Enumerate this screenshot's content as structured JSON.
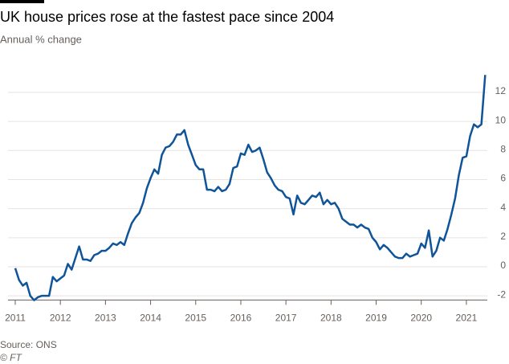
{
  "chart_data": {
    "type": "line",
    "title": "UK house prices rose at the fastest pace since 2004",
    "subtitle": "Annual % change",
    "source": "Source: ONS",
    "credit": "© FT",
    "xlim": [
      2011,
      2021.5
    ],
    "xticks": [
      2011,
      2012,
      2013,
      2014,
      2015,
      2016,
      2017,
      2018,
      2019,
      2020,
      2021
    ],
    "ylim": [
      -2.4,
      13.8
    ],
    "yticks": [
      -2,
      0,
      2,
      4,
      6,
      8,
      10,
      12
    ],
    "grid": true,
    "x": [
      2011.0,
      2011.083,
      2011.167,
      2011.25,
      2011.333,
      2011.417,
      2011.5,
      2011.583,
      2011.667,
      2011.75,
      2011.833,
      2011.917,
      2012.0,
      2012.083,
      2012.167,
      2012.25,
      2012.333,
      2012.417,
      2012.5,
      2012.583,
      2012.667,
      2012.75,
      2012.833,
      2012.917,
      2013.0,
      2013.083,
      2013.167,
      2013.25,
      2013.333,
      2013.417,
      2013.5,
      2013.583,
      2013.667,
      2013.75,
      2013.833,
      2013.917,
      2014.0,
      2014.083,
      2014.167,
      2014.25,
      2014.333,
      2014.417,
      2014.5,
      2014.583,
      2014.667,
      2014.75,
      2014.833,
      2014.917,
      2015.0,
      2015.083,
      2015.167,
      2015.25,
      2015.333,
      2015.417,
      2015.5,
      2015.583,
      2015.667,
      2015.75,
      2015.833,
      2015.917,
      2016.0,
      2016.083,
      2016.167,
      2016.25,
      2016.333,
      2016.417,
      2016.5,
      2016.583,
      2016.667,
      2016.75,
      2016.833,
      2016.917,
      2017.0,
      2017.083,
      2017.167,
      2017.25,
      2017.333,
      2017.417,
      2017.5,
      2017.583,
      2017.667,
      2017.75,
      2017.833,
      2017.917,
      2018.0,
      2018.083,
      2018.167,
      2018.25,
      2018.333,
      2018.417,
      2018.5,
      2018.583,
      2018.667,
      2018.75,
      2018.833,
      2018.917,
      2019.0,
      2019.083,
      2019.167,
      2019.25,
      2019.333,
      2019.417,
      2019.5,
      2019.583,
      2019.667,
      2019.75,
      2019.833,
      2019.917,
      2020.0,
      2020.083,
      2020.167,
      2020.25,
      2020.333,
      2020.417,
      2020.5,
      2020.583,
      2020.667,
      2020.75,
      2020.833,
      2020.917,
      2021.0,
      2021.083,
      2021.167,
      2021.25,
      2021.333,
      2021.417
    ],
    "series": [
      {
        "name": "Annual % change",
        "color": "#0f5499",
        "values": [
          -0.1,
          -0.9,
          -1.3,
          -1.1,
          -2.0,
          -2.3,
          -2.1,
          -2.0,
          -2.0,
          -2.0,
          -0.7,
          -1.0,
          -0.8,
          -0.6,
          0.2,
          -0.2,
          0.6,
          1.4,
          0.5,
          0.5,
          0.4,
          0.8,
          0.9,
          1.1,
          1.1,
          1.3,
          1.6,
          1.5,
          1.7,
          1.5,
          2.3,
          3.0,
          3.4,
          3.7,
          4.4,
          5.4,
          6.1,
          6.7,
          6.4,
          7.7,
          8.2,
          8.3,
          8.6,
          9.1,
          9.1,
          9.4,
          8.4,
          7.7,
          7.0,
          6.7,
          6.7,
          5.3,
          5.3,
          5.2,
          5.5,
          5.2,
          5.3,
          5.7,
          6.8,
          6.9,
          7.8,
          7.7,
          8.4,
          7.9,
          8.0,
          8.2,
          7.4,
          6.5,
          6.1,
          5.6,
          5.3,
          5.2,
          4.8,
          4.7,
          3.6,
          4.9,
          4.4,
          4.3,
          4.6,
          4.9,
          4.8,
          5.1,
          4.3,
          4.6,
          4.3,
          4.4,
          4.0,
          3.3,
          3.1,
          2.9,
          2.9,
          2.7,
          2.9,
          2.7,
          2.6,
          2.0,
          1.7,
          1.2,
          1.5,
          1.3,
          1.0,
          0.7,
          0.6,
          0.6,
          0.9,
          0.7,
          0.8,
          0.9,
          1.6,
          1.3,
          2.5,
          0.7,
          1.1,
          2.0,
          1.8,
          2.6,
          3.6,
          4.7,
          6.3,
          7.5,
          7.6,
          9.0,
          9.8,
          9.6,
          9.8,
          13.2
        ]
      }
    ]
  }
}
